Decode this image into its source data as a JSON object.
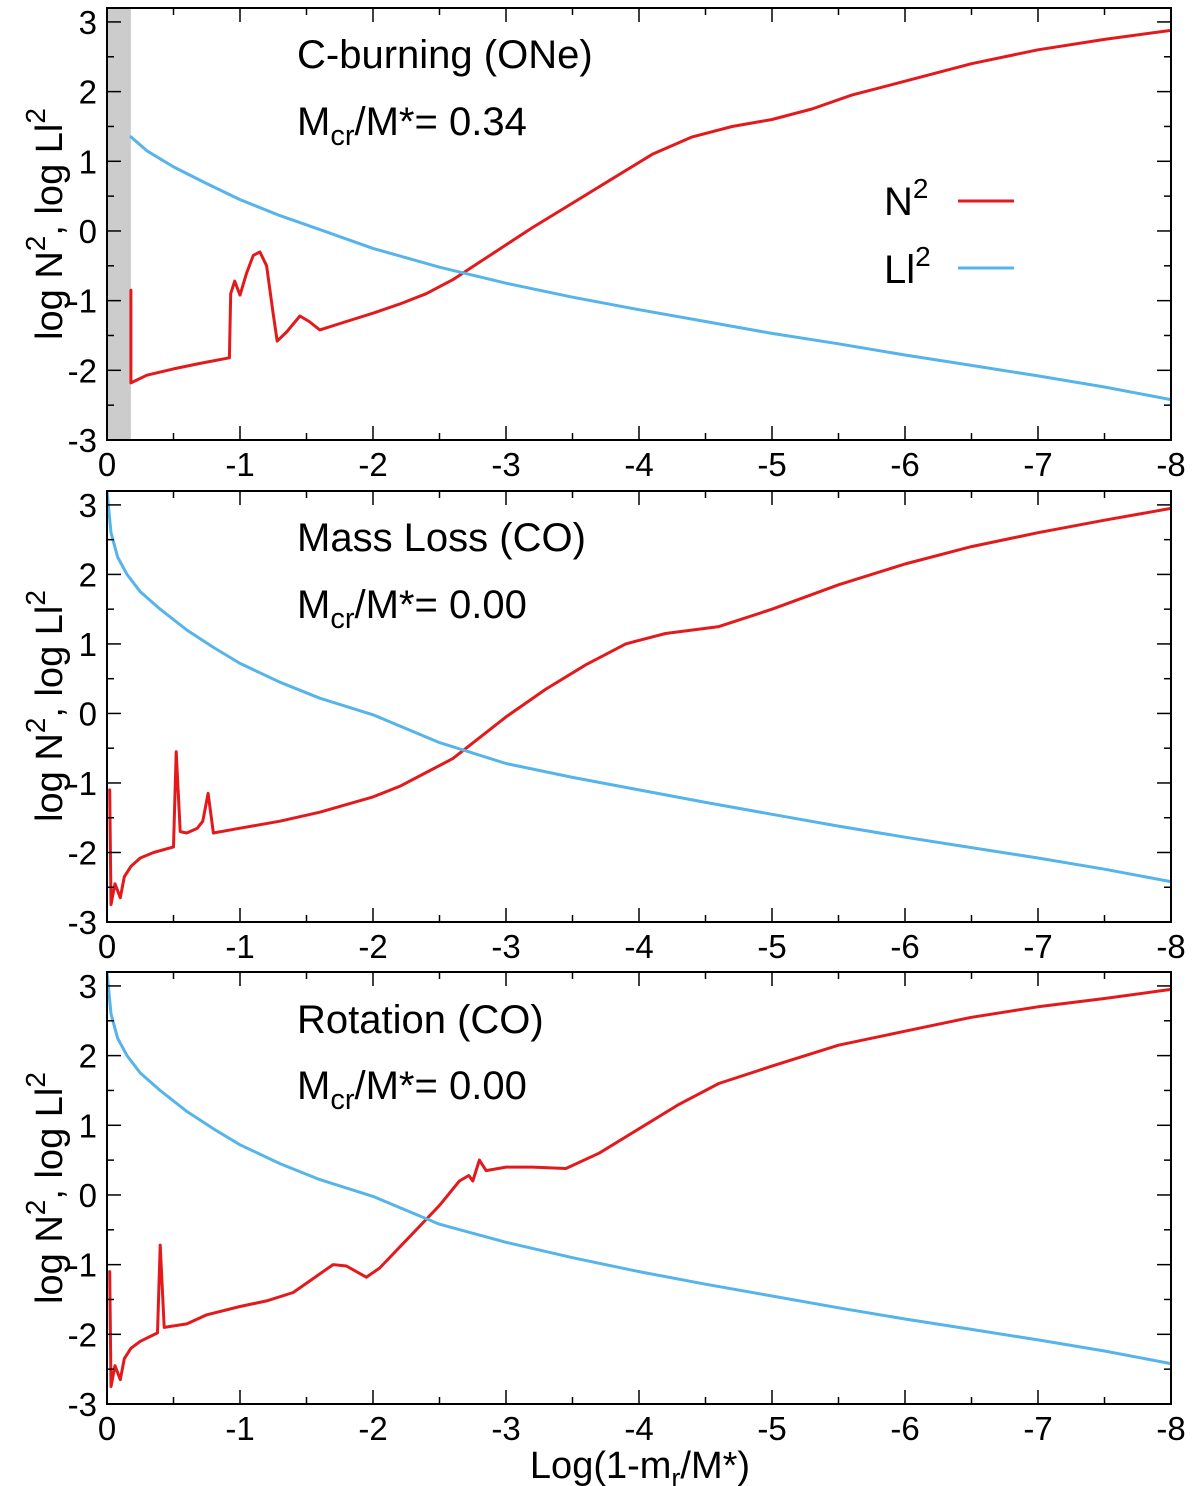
{
  "figure": {
    "xlabel_main": "Log(1-m",
    "xlabel_sub": "r",
    "xlabel_tail": "/M*)",
    "ylabel_a": "log N",
    "ylabel_b": ", log Ll",
    "ylabel_sup": "2"
  },
  "legend": {
    "items": [
      {
        "base": "N",
        "sup": "2",
        "color": "#e31a1c"
      },
      {
        "base": "Ll",
        "sup": "2",
        "color": "#56b4e9"
      }
    ]
  },
  "chart_data": [
    {
      "type": "line",
      "title": "C-burning (ONe)",
      "mcr_prefix": "M",
      "mcr_sub": "cr",
      "mcr_mid": "/M*= ",
      "mcr_value": "0.34",
      "xlim": [
        0,
        -8
      ],
      "ylim": [
        -3,
        3.2
      ],
      "xticks": [
        0,
        -1,
        -2,
        -3,
        -4,
        -5,
        -6,
        -7,
        -8
      ],
      "yticks": [
        -3,
        -2,
        -1,
        0,
        1,
        2,
        3
      ],
      "shaded_region": [
        0,
        -0.18
      ],
      "series": [
        {
          "name": "N2",
          "color": "#e31a1c",
          "points": [
            [
              -0.18,
              -0.85
            ],
            [
              -0.18,
              -2.18
            ],
            [
              -0.3,
              -2.07
            ],
            [
              -0.5,
              -1.98
            ],
            [
              -0.7,
              -1.9
            ],
            [
              -0.92,
              -1.82
            ],
            [
              -0.93,
              -0.9
            ],
            [
              -0.96,
              -0.72
            ],
            [
              -1.0,
              -0.92
            ],
            [
              -1.05,
              -0.6
            ],
            [
              -1.1,
              -0.35
            ],
            [
              -1.15,
              -0.3
            ],
            [
              -1.2,
              -0.5
            ],
            [
              -1.25,
              -1.2
            ],
            [
              -1.28,
              -1.58
            ],
            [
              -1.35,
              -1.45
            ],
            [
              -1.45,
              -1.22
            ],
            [
              -1.52,
              -1.3
            ],
            [
              -1.6,
              -1.42
            ],
            [
              -1.8,
              -1.3
            ],
            [
              -2.0,
              -1.18
            ],
            [
              -2.2,
              -1.05
            ],
            [
              -2.4,
              -0.9
            ],
            [
              -2.6,
              -0.7
            ],
            [
              -2.8,
              -0.45
            ],
            [
              -3.0,
              -0.2
            ],
            [
              -3.2,
              0.05
            ],
            [
              -3.5,
              0.4
            ],
            [
              -3.8,
              0.75
            ],
            [
              -4.1,
              1.1
            ],
            [
              -4.4,
              1.35
            ],
            [
              -4.7,
              1.5
            ],
            [
              -5.0,
              1.6
            ],
            [
              -5.3,
              1.75
            ],
            [
              -5.6,
              1.95
            ],
            [
              -6.0,
              2.15
            ],
            [
              -6.5,
              2.4
            ],
            [
              -7.0,
              2.6
            ],
            [
              -7.5,
              2.75
            ],
            [
              -8.0,
              2.88
            ]
          ]
        },
        {
          "name": "Ll2",
          "color": "#56b4e9",
          "points": [
            [
              -0.18,
              1.35
            ],
            [
              -0.3,
              1.15
            ],
            [
              -0.5,
              0.92
            ],
            [
              -0.75,
              0.68
            ],
            [
              -1.0,
              0.45
            ],
            [
              -1.3,
              0.22
            ],
            [
              -1.6,
              0.02
            ],
            [
              -2.0,
              -0.25
            ],
            [
              -2.5,
              -0.52
            ],
            [
              -3.0,
              -0.75
            ],
            [
              -3.5,
              -0.95
            ],
            [
              -4.0,
              -1.13
            ],
            [
              -4.5,
              -1.3
            ],
            [
              -5.0,
              -1.47
            ],
            [
              -5.5,
              -1.62
            ],
            [
              -6.0,
              -1.78
            ],
            [
              -6.5,
              -1.93
            ],
            [
              -7.0,
              -2.08
            ],
            [
              -7.5,
              -2.24
            ],
            [
              -8.0,
              -2.42
            ]
          ]
        }
      ]
    },
    {
      "type": "line",
      "title": "Mass Loss (CO)",
      "mcr_prefix": "M",
      "mcr_sub": "cr",
      "mcr_mid": "/M*= ",
      "mcr_value": "0.00",
      "xlim": [
        0,
        -8
      ],
      "ylim": [
        -3,
        3.2
      ],
      "xticks": [
        0,
        -1,
        -2,
        -3,
        -4,
        -5,
        -6,
        -7,
        -8
      ],
      "yticks": [
        -3,
        -2,
        -1,
        0,
        1,
        2,
        3
      ],
      "series": [
        {
          "name": "N2",
          "color": "#e31a1c",
          "points": [
            [
              -0.02,
              -1.1
            ],
            [
              -0.03,
              -2.75
            ],
            [
              -0.06,
              -2.45
            ],
            [
              -0.1,
              -2.65
            ],
            [
              -0.13,
              -2.35
            ],
            [
              -0.18,
              -2.2
            ],
            [
              -0.25,
              -2.08
            ],
            [
              -0.35,
              -2.0
            ],
            [
              -0.5,
              -1.92
            ],
            [
              -0.52,
              -0.55
            ],
            [
              -0.55,
              -1.7
            ],
            [
              -0.6,
              -1.72
            ],
            [
              -0.68,
              -1.65
            ],
            [
              -0.72,
              -1.55
            ],
            [
              -0.76,
              -1.15
            ],
            [
              -0.8,
              -1.72
            ],
            [
              -1.0,
              -1.65
            ],
            [
              -1.3,
              -1.55
            ],
            [
              -1.6,
              -1.42
            ],
            [
              -2.0,
              -1.2
            ],
            [
              -2.2,
              -1.05
            ],
            [
              -2.4,
              -0.85
            ],
            [
              -2.6,
              -0.65
            ],
            [
              -2.8,
              -0.35
            ],
            [
              -3.0,
              -0.05
            ],
            [
              -3.3,
              0.35
            ],
            [
              -3.6,
              0.7
            ],
            [
              -3.9,
              1.0
            ],
            [
              -4.2,
              1.15
            ],
            [
              -4.6,
              1.25
            ],
            [
              -5.0,
              1.5
            ],
            [
              -5.5,
              1.85
            ],
            [
              -6.0,
              2.15
            ],
            [
              -6.5,
              2.4
            ],
            [
              -7.0,
              2.6
            ],
            [
              -7.5,
              2.78
            ],
            [
              -8.0,
              2.95
            ]
          ]
        },
        {
          "name": "Ll2",
          "color": "#56b4e9",
          "points": [
            [
              0.0,
              3.2
            ],
            [
              -0.03,
              2.6
            ],
            [
              -0.08,
              2.25
            ],
            [
              -0.15,
              2.0
            ],
            [
              -0.25,
              1.75
            ],
            [
              -0.4,
              1.5
            ],
            [
              -0.6,
              1.2
            ],
            [
              -0.8,
              0.95
            ],
            [
              -1.0,
              0.72
            ],
            [
              -1.3,
              0.45
            ],
            [
              -1.6,
              0.22
            ],
            [
              -2.0,
              -0.02
            ],
            [
              -2.5,
              -0.42
            ],
            [
              -3.0,
              -0.72
            ],
            [
              -3.5,
              -0.92
            ],
            [
              -4.0,
              -1.1
            ],
            [
              -4.5,
              -1.28
            ],
            [
              -5.0,
              -1.45
            ],
            [
              -5.5,
              -1.62
            ],
            [
              -6.0,
              -1.78
            ],
            [
              -6.5,
              -1.93
            ],
            [
              -7.0,
              -2.08
            ],
            [
              -7.5,
              -2.24
            ],
            [
              -8.0,
              -2.42
            ]
          ]
        }
      ]
    },
    {
      "type": "line",
      "title": "Rotation (CO)",
      "mcr_prefix": "M",
      "mcr_sub": "cr",
      "mcr_mid": "/M*= ",
      "mcr_value": "0.00",
      "xlim": [
        0,
        -8
      ],
      "ylim": [
        -3,
        3.2
      ],
      "xticks": [
        0,
        -1,
        -2,
        -3,
        -4,
        -5,
        -6,
        -7,
        -8
      ],
      "yticks": [
        -3,
        -2,
        -1,
        0,
        1,
        2,
        3
      ],
      "series": [
        {
          "name": "N2",
          "color": "#e31a1c",
          "points": [
            [
              -0.02,
              -1.1
            ],
            [
              -0.03,
              -2.75
            ],
            [
              -0.06,
              -2.45
            ],
            [
              -0.1,
              -2.65
            ],
            [
              -0.13,
              -2.35
            ],
            [
              -0.18,
              -2.2
            ],
            [
              -0.25,
              -2.1
            ],
            [
              -0.38,
              -1.98
            ],
            [
              -0.4,
              -0.72
            ],
            [
              -0.43,
              -1.9
            ],
            [
              -0.6,
              -1.85
            ],
            [
              -0.75,
              -1.72
            ],
            [
              -1.0,
              -1.6
            ],
            [
              -1.2,
              -1.52
            ],
            [
              -1.4,
              -1.4
            ],
            [
              -1.55,
              -1.2
            ],
            [
              -1.7,
              -1.0
            ],
            [
              -1.8,
              -1.02
            ],
            [
              -1.95,
              -1.18
            ],
            [
              -2.05,
              -1.05
            ],
            [
              -2.2,
              -0.75
            ],
            [
              -2.35,
              -0.45
            ],
            [
              -2.5,
              -0.15
            ],
            [
              -2.65,
              0.2
            ],
            [
              -2.72,
              0.28
            ],
            [
              -2.75,
              0.2
            ],
            [
              -2.8,
              0.5
            ],
            [
              -2.85,
              0.35
            ],
            [
              -3.0,
              0.4
            ],
            [
              -3.2,
              0.4
            ],
            [
              -3.45,
              0.38
            ],
            [
              -3.7,
              0.6
            ],
            [
              -4.0,
              0.95
            ],
            [
              -4.3,
              1.3
            ],
            [
              -4.6,
              1.6
            ],
            [
              -5.0,
              1.85
            ],
            [
              -5.5,
              2.15
            ],
            [
              -6.0,
              2.35
            ],
            [
              -6.5,
              2.55
            ],
            [
              -7.0,
              2.7
            ],
            [
              -7.5,
              2.82
            ],
            [
              -8.0,
              2.95
            ]
          ]
        },
        {
          "name": "Ll2",
          "color": "#56b4e9",
          "points": [
            [
              0.0,
              3.2
            ],
            [
              -0.03,
              2.6
            ],
            [
              -0.08,
              2.25
            ],
            [
              -0.15,
              2.0
            ],
            [
              -0.25,
              1.75
            ],
            [
              -0.4,
              1.5
            ],
            [
              -0.6,
              1.2
            ],
            [
              -0.8,
              0.95
            ],
            [
              -1.0,
              0.72
            ],
            [
              -1.3,
              0.45
            ],
            [
              -1.6,
              0.22
            ],
            [
              -2.0,
              -0.02
            ],
            [
              -2.5,
              -0.42
            ],
            [
              -3.0,
              -0.68
            ],
            [
              -3.5,
              -0.9
            ],
            [
              -4.0,
              -1.1
            ],
            [
              -4.5,
              -1.28
            ],
            [
              -5.0,
              -1.45
            ],
            [
              -5.5,
              -1.62
            ],
            [
              -6.0,
              -1.78
            ],
            [
              -6.5,
              -1.93
            ],
            [
              -7.0,
              -2.08
            ],
            [
              -7.5,
              -2.24
            ],
            [
              -8.0,
              -2.42
            ]
          ]
        }
      ]
    }
  ]
}
